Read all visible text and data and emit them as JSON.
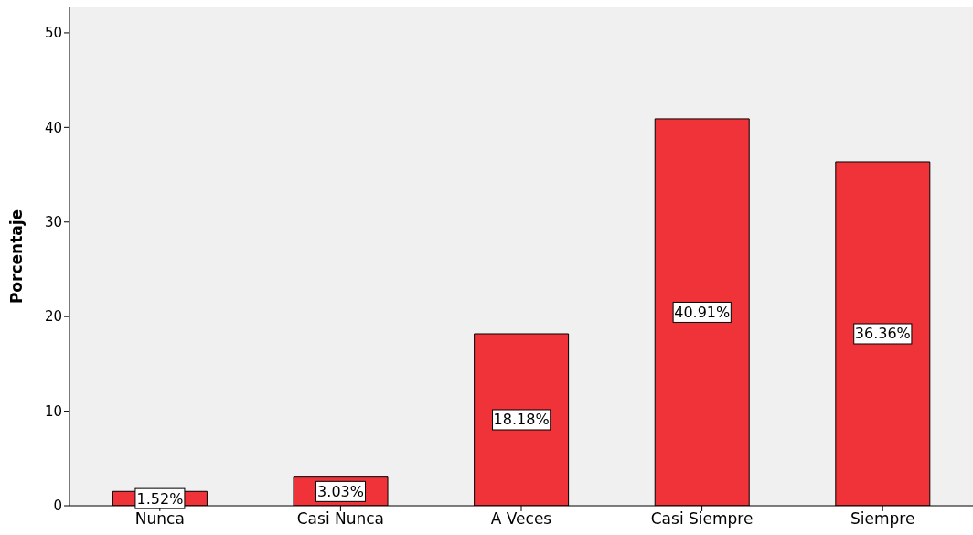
{
  "chart_data": {
    "type": "bar",
    "ylabel": "Porcentaje",
    "categories": [
      "Nunca",
      "Casi Nunca",
      "A Veces",
      "Casi Siempre",
      "Siempre"
    ],
    "values": [
      1.52,
      3.03,
      18.18,
      40.91,
      36.36
    ],
    "value_labels": [
      "1.52%",
      "3.03%",
      "18.18%",
      "40.91%",
      "36.36%"
    ],
    "color": "#ef3339",
    "ylim": [
      0,
      52.7
    ],
    "yticks": [
      0,
      10,
      20,
      30,
      40,
      50
    ],
    "grid": false,
    "legend": false
  }
}
